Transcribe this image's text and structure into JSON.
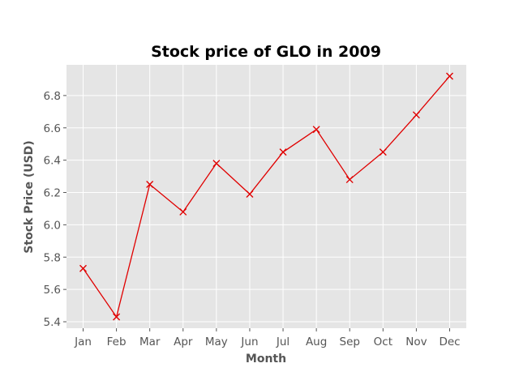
{
  "chart_data": {
    "type": "line",
    "title": "Stock price of GLO in 2009",
    "xlabel": "Month",
    "ylabel": "Stock Price (USD)",
    "categories": [
      "Jan",
      "Feb",
      "Mar",
      "Apr",
      "May",
      "Jun",
      "Jul",
      "Aug",
      "Sep",
      "Oct",
      "Nov",
      "Dec"
    ],
    "series": [
      {
        "values": [
          5.73,
          5.43,
          6.25,
          6.08,
          6.38,
          6.19,
          6.45,
          6.59,
          6.28,
          6.45,
          6.68,
          6.92
        ],
        "color": "#e00000",
        "marker": "x"
      }
    ],
    "ylim": [
      5.36,
      6.99
    ],
    "yticks": [
      "5.4",
      "5.6",
      "5.8",
      "6.0",
      "6.2",
      "6.4",
      "6.6",
      "6.8"
    ],
    "grid": true,
    "background": "#e5e5e5",
    "grid_color": "#ffffff"
  }
}
